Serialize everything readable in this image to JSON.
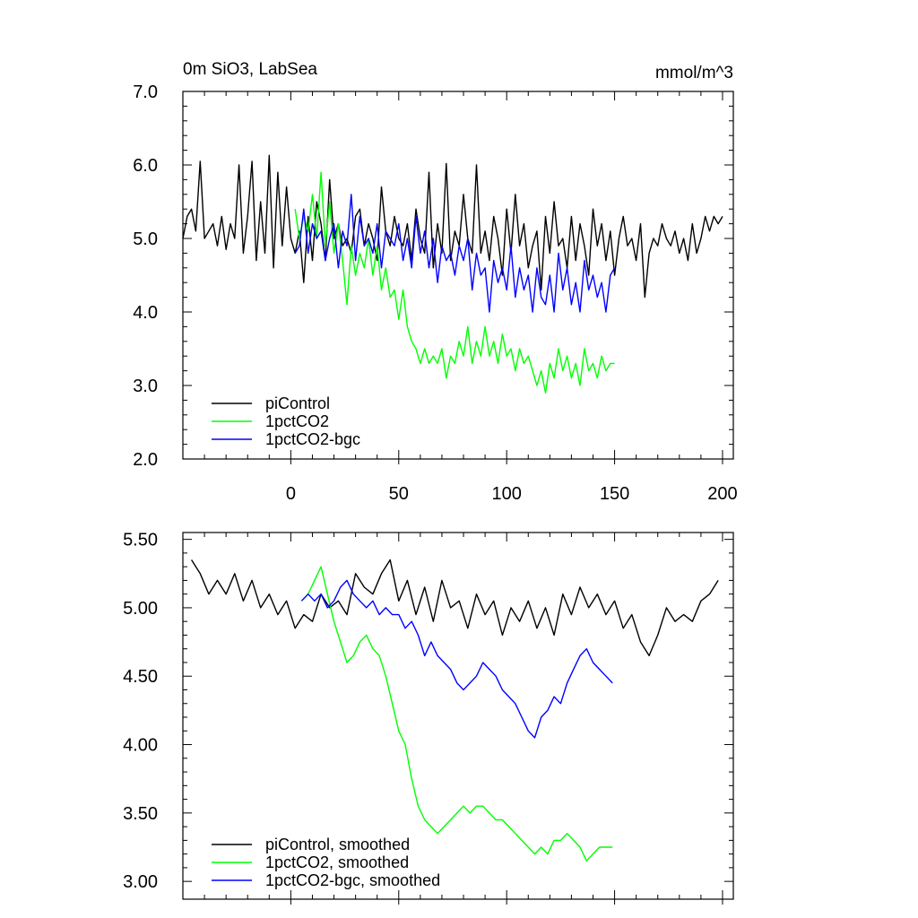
{
  "chart_data": [
    {
      "type": "line",
      "title_left": "0m SiO3, LabSea",
      "title_right": "mmol/m^3",
      "xlim": [
        -50,
        205
      ],
      "ylim": [
        2.0,
        7.0
      ],
      "xticks": [
        0,
        50,
        100,
        150,
        200
      ],
      "xtick_labels": [
        "0",
        "50",
        "100",
        "150",
        "200"
      ],
      "yticks": [
        2.0,
        3.0,
        4.0,
        5.0,
        6.0,
        7.0
      ],
      "ytick_labels": [
        "2.0",
        "3.0",
        "4.0",
        "5.0",
        "6.0",
        "7.0"
      ],
      "legend_placement": "bottom-left",
      "series": [
        {
          "name": "piControl",
          "color": "#000000",
          "x": [
            -50,
            -48,
            -46,
            -44,
            -42,
            -40,
            -38,
            -36,
            -34,
            -32,
            -30,
            -28,
            -26,
            -24,
            -22,
            -20,
            -18,
            -16,
            -14,
            -12,
            -10,
            -8,
            -6,
            -4,
            -2,
            0,
            2,
            4,
            6,
            8,
            10,
            12,
            14,
            16,
            18,
            20,
            22,
            24,
            26,
            28,
            30,
            32,
            34,
            36,
            38,
            40,
            42,
            44,
            46,
            48,
            50,
            52,
            54,
            56,
            58,
            60,
            62,
            64,
            66,
            68,
            70,
            72,
            74,
            76,
            78,
            80,
            82,
            84,
            86,
            88,
            90,
            92,
            94,
            96,
            98,
            100,
            102,
            104,
            106,
            108,
            110,
            112,
            114,
            116,
            118,
            120,
            122,
            124,
            126,
            128,
            130,
            132,
            134,
            136,
            138,
            140,
            142,
            144,
            146,
            148,
            150,
            152,
            154,
            156,
            158,
            160,
            162,
            164,
            166,
            168,
            170,
            172,
            174,
            176,
            178,
            180,
            182,
            184,
            186,
            188,
            190,
            192,
            194,
            196,
            198,
            200
          ],
          "y": [
            5.0,
            5.3,
            5.4,
            5.1,
            6.05,
            5.0,
            5.1,
            5.2,
            4.9,
            5.3,
            4.85,
            5.2,
            5.0,
            6.0,
            4.8,
            5.3,
            6.05,
            4.7,
            5.5,
            4.8,
            6.13,
            4.6,
            5.9,
            4.9,
            5.7,
            5.0,
            4.8,
            5.1,
            4.4,
            5.3,
            4.7,
            5.5,
            5.2,
            4.7,
            5.8,
            5.0,
            5.2,
            4.9,
            5.0,
            4.8,
            5.3,
            5.4,
            4.9,
            5.2,
            5.0,
            4.7,
            5.7,
            5.1,
            4.9,
            5.3,
            5.0,
            4.9,
            5.2,
            4.7,
            5.4,
            5.0,
            4.8,
            5.9,
            4.6,
            5.2,
            4.8,
            6.02,
            4.7,
            5.1,
            4.9,
            5.6,
            5.0,
            4.8,
            6.0,
            4.8,
            5.1,
            4.7,
            5.3,
            5.0,
            4.5,
            5.4,
            4.8,
            5.6,
            4.9,
            5.2,
            4.6,
            4.9,
            5.1,
            4.3,
            5.3,
            4.8,
            5.5,
            4.9,
            5.0,
            4.6,
            5.3,
            4.7,
            5.2,
            4.9,
            4.5,
            5.4,
            4.9,
            5.2,
            4.7,
            5.1,
            4.5,
            5.0,
            5.3,
            4.9,
            5.0,
            4.7,
            5.2,
            4.2,
            4.8,
            5.0,
            4.9,
            5.2,
            5.0,
            4.9,
            5.1,
            4.8,
            5.0,
            4.7,
            5.2,
            4.8,
            5.0,
            5.3,
            5.1,
            5.3,
            5.2,
            5.3
          ],
          "show_to": 200
        },
        {
          "name": "1pctCO2",
          "color": "#00ff00",
          "x": [
            2,
            4,
            6,
            8,
            10,
            12,
            14,
            16,
            18,
            20,
            22,
            24,
            26,
            28,
            30,
            32,
            34,
            36,
            38,
            40,
            42,
            44,
            46,
            48,
            50,
            52,
            54,
            56,
            58,
            60,
            62,
            64,
            66,
            68,
            70,
            72,
            74,
            76,
            78,
            80,
            82,
            84,
            86,
            88,
            90,
            92,
            94,
            96,
            98,
            100,
            102,
            104,
            106,
            108,
            110,
            112,
            114,
            116,
            118,
            120,
            122,
            124,
            126,
            128,
            130,
            132,
            134,
            136,
            138,
            140,
            142,
            144,
            146,
            148,
            150
          ],
          "y": [
            5.4,
            5.0,
            5.3,
            5.1,
            5.6,
            5.0,
            5.9,
            4.9,
            5.5,
            4.8,
            5.2,
            4.7,
            4.1,
            4.9,
            4.5,
            4.8,
            4.6,
            5.0,
            4.5,
            4.9,
            4.3,
            4.6,
            4.2,
            4.3,
            3.9,
            4.3,
            3.8,
            3.6,
            3.5,
            3.3,
            3.5,
            3.3,
            3.4,
            3.3,
            3.5,
            3.1,
            3.4,
            3.3,
            3.6,
            3.4,
            3.8,
            3.3,
            3.6,
            3.4,
            3.8,
            3.4,
            3.6,
            3.3,
            3.7,
            3.4,
            3.5,
            3.2,
            3.5,
            3.3,
            3.4,
            3.2,
            3.0,
            3.2,
            2.9,
            3.3,
            3.1,
            3.5,
            3.2,
            3.4,
            3.1,
            3.3,
            3.0,
            3.5,
            3.2,
            3.3,
            3.1,
            3.4,
            3.2,
            3.3,
            3.3
          ]
        },
        {
          "name": "1pctCO2-bgc",
          "color": "#0000ff",
          "x": [
            2,
            4,
            6,
            8,
            10,
            12,
            14,
            16,
            18,
            20,
            22,
            24,
            26,
            28,
            30,
            32,
            34,
            36,
            38,
            40,
            42,
            44,
            46,
            48,
            50,
            52,
            54,
            56,
            58,
            60,
            62,
            64,
            66,
            68,
            70,
            72,
            74,
            76,
            78,
            80,
            82,
            84,
            86,
            88,
            90,
            92,
            94,
            96,
            98,
            100,
            102,
            104,
            106,
            108,
            110,
            112,
            114,
            116,
            118,
            120,
            122,
            124,
            126,
            128,
            130,
            132,
            134,
            136,
            138,
            140,
            142,
            144,
            146,
            148,
            150
          ],
          "y": [
            4.8,
            4.9,
            5.4,
            4.8,
            5.2,
            5.0,
            5.1,
            4.7,
            5.0,
            5.2,
            4.6,
            5.1,
            4.9,
            5.6,
            4.7,
            5.3,
            4.9,
            5.0,
            4.8,
            5.2,
            4.6,
            5.1,
            5.0,
            4.9,
            5.2,
            4.7,
            5.0,
            4.6,
            5.3,
            4.8,
            5.1,
            4.6,
            5.0,
            4.4,
            4.9,
            4.7,
            4.8,
            4.5,
            4.9,
            4.7,
            5.0,
            4.3,
            4.8,
            4.5,
            4.6,
            4.0,
            4.7,
            4.4,
            4.6,
            4.3,
            4.9,
            4.2,
            4.6,
            4.3,
            4.5,
            4.0,
            4.6,
            4.2,
            4.1,
            4.5,
            4.0,
            4.8,
            4.3,
            4.6,
            4.1,
            4.4,
            4.0,
            4.7,
            4.3,
            4.5,
            4.2,
            4.4,
            4.0,
            4.5,
            4.6
          ]
        }
      ]
    },
    {
      "type": "line",
      "xlim": [
        -50,
        205
      ],
      "ylim": [
        2.87,
        5.55
      ],
      "xticks": [
        0,
        50,
        100,
        150,
        200
      ],
      "yticks": [
        3.0,
        3.5,
        4.0,
        4.5,
        5.0,
        5.5
      ],
      "ytick_labels": [
        "3.00",
        "3.50",
        "4.00",
        "4.50",
        "5.00",
        "5.50"
      ],
      "legend_placement": "bottom-left",
      "series": [
        {
          "name": "piControl, smoothed",
          "color": "#000000",
          "x": [
            -46,
            -42,
            -38,
            -34,
            -30,
            -26,
            -22,
            -18,
            -14,
            -10,
            -6,
            -2,
            2,
            6,
            10,
            14,
            18,
            22,
            26,
            30,
            34,
            38,
            42,
            46,
            50,
            54,
            58,
            62,
            66,
            70,
            74,
            78,
            82,
            86,
            90,
            94,
            98,
            102,
            106,
            110,
            114,
            118,
            122,
            126,
            130,
            134,
            138,
            142,
            146,
            150,
            154,
            158,
            162,
            166,
            170,
            174,
            178,
            182,
            186,
            190,
            194,
            198
          ],
          "y": [
            5.35,
            5.25,
            5.1,
            5.2,
            5.1,
            5.25,
            5.05,
            5.2,
            5.0,
            5.1,
            4.95,
            5.05,
            4.85,
            4.95,
            4.9,
            5.1,
            5.0,
            5.05,
            4.95,
            5.25,
            5.15,
            5.1,
            5.25,
            5.35,
            5.05,
            5.2,
            4.95,
            5.15,
            4.9,
            5.2,
            5.0,
            5.05,
            4.85,
            5.1,
            4.95,
            5.05,
            4.8,
            5.0,
            4.9,
            5.05,
            4.85,
            5.0,
            4.8,
            5.1,
            4.95,
            5.15,
            5.0,
            5.1,
            4.95,
            5.05,
            4.85,
            4.95,
            4.75,
            4.65,
            4.8,
            5.0,
            4.9,
            4.95,
            4.9,
            5.05,
            5.1,
            5.2
          ]
        },
        {
          "name": "1pctCO2, smoothed",
          "color": "#00ff00",
          "x": [
            5,
            8,
            11,
            14,
            17,
            20,
            23,
            26,
            29,
            32,
            35,
            38,
            41,
            44,
            47,
            50,
            53,
            56,
            59,
            62,
            65,
            68,
            71,
            74,
            77,
            80,
            83,
            86,
            89,
            92,
            95,
            98,
            101,
            104,
            107,
            110,
            113,
            116,
            119,
            122,
            125,
            128,
            131,
            134,
            137,
            140,
            143,
            146,
            149
          ],
          "y": [
            5.05,
            5.1,
            5.2,
            5.3,
            5.1,
            4.9,
            4.75,
            4.6,
            4.65,
            4.75,
            4.8,
            4.7,
            4.65,
            4.5,
            4.3,
            4.1,
            4.0,
            3.75,
            3.55,
            3.45,
            3.4,
            3.35,
            3.4,
            3.45,
            3.5,
            3.55,
            3.5,
            3.55,
            3.55,
            3.5,
            3.45,
            3.45,
            3.4,
            3.35,
            3.3,
            3.25,
            3.2,
            3.25,
            3.2,
            3.3,
            3.3,
            3.35,
            3.3,
            3.25,
            3.15,
            3.2,
            3.25,
            3.25,
            3.25
          ]
        },
        {
          "name": "1pctCO2-bgc, smoothed",
          "color": "#0000ff",
          "x": [
            5,
            8,
            11,
            14,
            17,
            20,
            23,
            26,
            29,
            32,
            35,
            38,
            41,
            44,
            47,
            50,
            53,
            56,
            59,
            62,
            65,
            68,
            71,
            74,
            77,
            80,
            83,
            86,
            89,
            92,
            95,
            98,
            101,
            104,
            107,
            110,
            113,
            116,
            119,
            122,
            125,
            128,
            131,
            134,
            137,
            140,
            143,
            146,
            149
          ],
          "y": [
            5.05,
            5.1,
            5.05,
            5.1,
            5.0,
            5.05,
            5.15,
            5.2,
            5.1,
            5.05,
            5.0,
            5.05,
            4.95,
            5.0,
            4.95,
            4.95,
            4.85,
            4.9,
            4.8,
            4.65,
            4.75,
            4.65,
            4.6,
            4.55,
            4.45,
            4.4,
            4.45,
            4.5,
            4.6,
            4.55,
            4.5,
            4.4,
            4.35,
            4.3,
            4.2,
            4.1,
            4.05,
            4.2,
            4.25,
            4.35,
            4.3,
            4.45,
            4.55,
            4.65,
            4.7,
            4.6,
            4.55,
            4.5,
            4.45
          ]
        }
      ]
    }
  ]
}
